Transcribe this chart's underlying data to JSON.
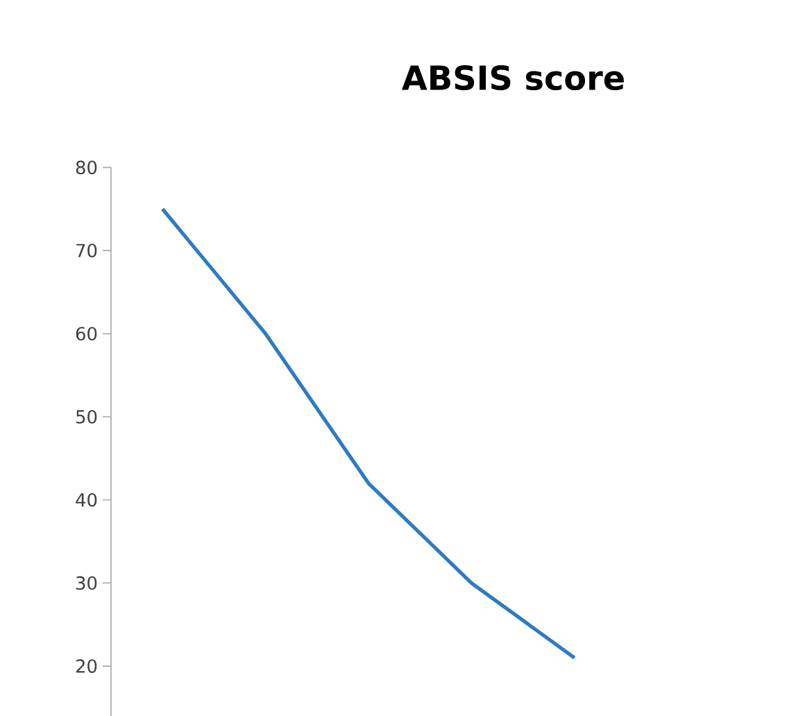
{
  "chart_data": {
    "type": "line",
    "title": "ABSIS score",
    "categories": [
      null,
      null,
      null,
      null,
      null
    ],
    "series": [
      {
        "color": "#2e7bbf",
        "values": [
          75,
          60,
          42,
          30,
          21
        ]
      }
    ],
    "ylim": [
      14,
      80
    ],
    "yticks": [
      20,
      30,
      40,
      50,
      60,
      70,
      80
    ],
    "grid": false,
    "marker": "none",
    "line_style": "solid"
  }
}
